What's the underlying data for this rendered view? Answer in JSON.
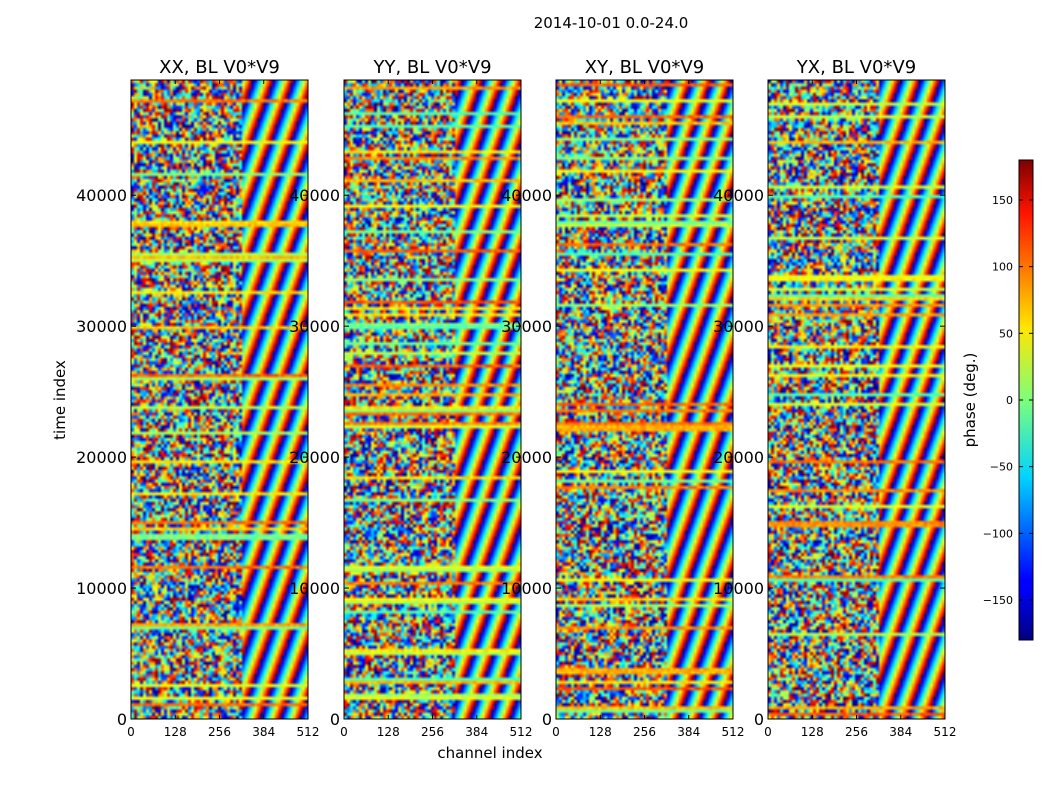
{
  "figure": {
    "suptitle": "2014-10-01 0.0-24.0",
    "xlabel": "channel index",
    "ylabel": "time index",
    "colorbar_label": "phase (deg.)"
  },
  "chart_data": {
    "type": "heatmap",
    "suptitle": "2014-10-01 0.0-24.0",
    "xlabel": "channel index",
    "ylabel": "time index",
    "xlim": [
      0,
      512
    ],
    "ylim": [
      0,
      48800
    ],
    "xticks": [
      0,
      128,
      256,
      384,
      512
    ],
    "xtick_labels": [
      "0",
      "128",
      "256",
      "384",
      "512"
    ],
    "yticks": [
      0,
      10000,
      20000,
      30000,
      40000
    ],
    "ytick_labels": [
      "0",
      "10000",
      "20000",
      "30000",
      "40000"
    ],
    "panels": [
      {
        "title": "XX, BL V0*V9"
      },
      {
        "title": "YY, BL V0*V9"
      },
      {
        "title": "XY, BL V0*V9"
      },
      {
        "title": "YX, BL V0*V9"
      }
    ],
    "colorbar": {
      "label": "phase (deg.)",
      "range": [
        -180,
        180
      ],
      "colormap": "jet",
      "ticks": [
        -150,
        -100,
        -50,
        0,
        50,
        100,
        150
      ],
      "tick_labels": [
        "−150",
        "−100",
        "−50",
        "0",
        "50",
        "100",
        "150"
      ]
    },
    "grid": false
  }
}
